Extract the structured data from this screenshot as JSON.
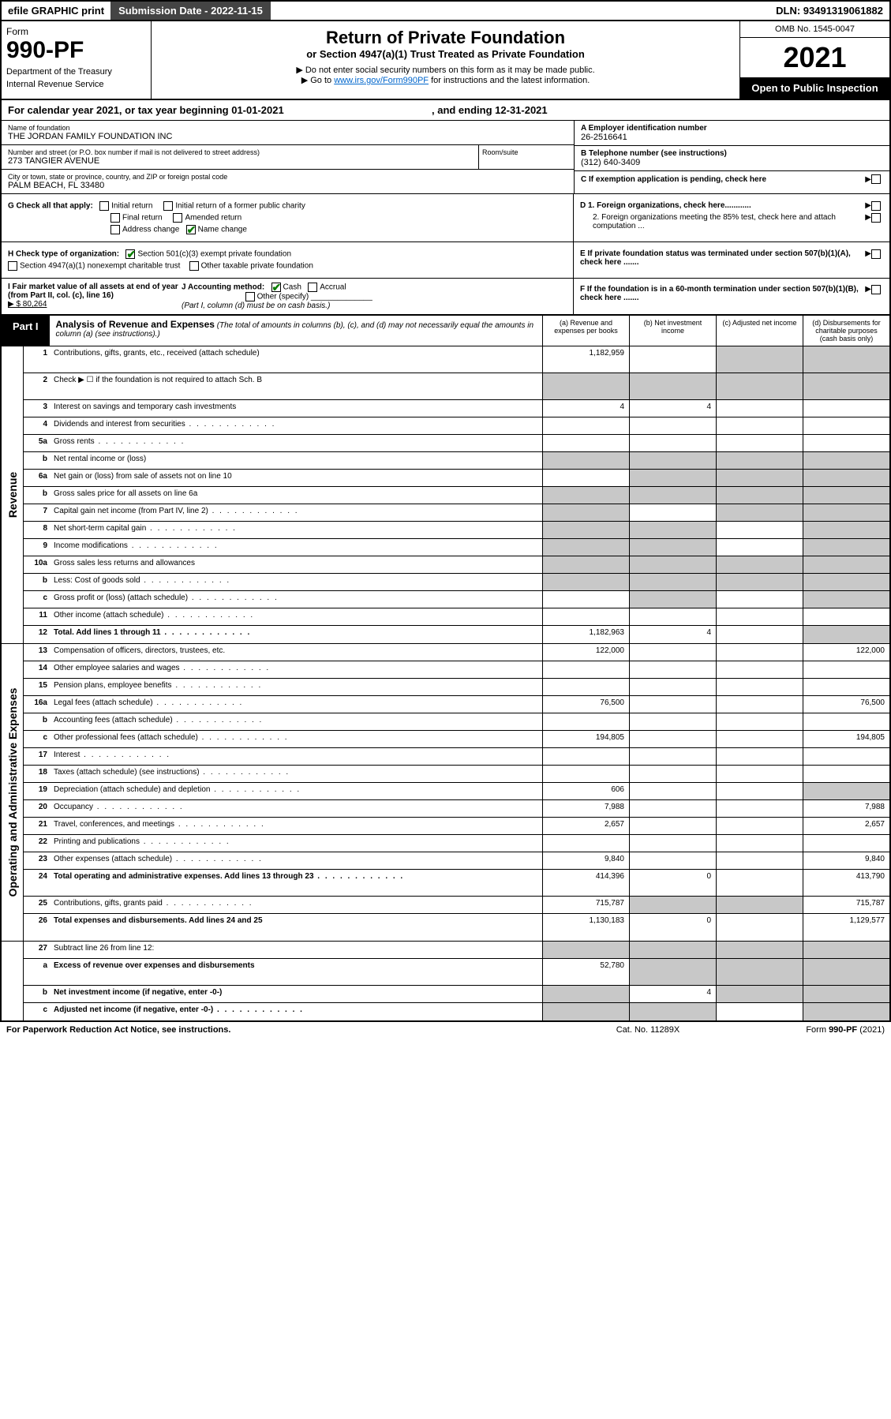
{
  "topbar": {
    "efile": "efile GRAPHIC print",
    "subdate_label": "Submission Date - 2022-11-15",
    "dln": "DLN: 93491319061882"
  },
  "header": {
    "form_word": "Form",
    "form_no": "990-PF",
    "dept": "Department of the Treasury",
    "irs": "Internal Revenue Service",
    "title": "Return of Private Foundation",
    "subtitle": "or Section 4947(a)(1) Trust Treated as Private Foundation",
    "note1": "▶ Do not enter social security numbers on this form as it may be made public.",
    "note2_pre": "▶ Go to ",
    "note2_link": "www.irs.gov/Form990PF",
    "note2_post": " for instructions and the latest information.",
    "omb": "OMB No. 1545-0047",
    "year": "2021",
    "open": "Open to Public Inspection"
  },
  "calyear": {
    "text_a": "For calendar year 2021, or tax year beginning 01-01-2021",
    "text_b": ", and ending 12-31-2021"
  },
  "foundation": {
    "name_label": "Name of foundation",
    "name": "THE JORDAN FAMILY FOUNDATION INC",
    "addr_label": "Number and street (or P.O. box number if mail is not delivered to street address)",
    "addr": "273 TANGIER AVENUE",
    "room_label": "Room/suite",
    "city_label": "City or town, state or province, country, and ZIP or foreign postal code",
    "city": "PALM BEACH, FL  33480",
    "ein_label": "A Employer identification number",
    "ein": "26-2516641",
    "phone_label": "B Telephone number (see instructions)",
    "phone": "(312) 640-3409",
    "c_label": "C If exemption application is pending, check here",
    "d1": "D 1. Foreign organizations, check here............",
    "d2": "2. Foreign organizations meeting the 85% test, check here and attach computation ...",
    "e": "E  If private foundation status was terminated under section 507(b)(1)(A), check here .......",
    "f": "F  If the foundation is in a 60-month termination under section 507(b)(1)(B), check here .......",
    "g_label": "G Check all that apply:",
    "g_opts": [
      "Initial return",
      "Initial return of a former public charity",
      "Final return",
      "Amended return",
      "Address change",
      "Name change"
    ],
    "h_label": "H Check type of organization:",
    "h1": "Section 501(c)(3) exempt private foundation",
    "h2": "Section 4947(a)(1) nonexempt charitable trust",
    "h3": "Other taxable private foundation",
    "i_label": "I Fair market value of all assets at end of year (from Part II, col. (c), line 16)",
    "i_val": "▶ $  80,264",
    "j_label": "J Accounting method:",
    "j_cash": "Cash",
    "j_accrual": "Accrual",
    "j_other": "Other (specify)",
    "j_note": "(Part I, column (d) must be on cash basis.)"
  },
  "part1": {
    "tag": "Part I",
    "title": "Analysis of Revenue and Expenses",
    "title_note": " (The total of amounts in columns (b), (c), and (d) may not necessarily equal the amounts in column (a) (see instructions).)",
    "col_a": "(a)   Revenue and expenses per books",
    "col_b": "(b)   Net investment income",
    "col_c": "(c)   Adjusted net income",
    "col_d": "(d)  Disbursements for charitable purposes (cash basis only)"
  },
  "side_labels": {
    "rev": "Revenue",
    "exp": "Operating and Administrative Expenses"
  },
  "rows": [
    {
      "ln": "1",
      "desc": "Contributions, gifts, grants, etc., received (attach schedule)",
      "a": "1,182,959",
      "b": "",
      "c": "",
      "d": "",
      "gb": false,
      "gc": true,
      "gd": true,
      "tall": true
    },
    {
      "ln": "2",
      "desc": "Check ▶ ☐ if the foundation is not required to attach Sch. B",
      "a": "",
      "b": "",
      "c": "",
      "d": "",
      "ga": true,
      "gb": true,
      "gc": true,
      "gd": true,
      "tall": true,
      "dotsdesc": true
    },
    {
      "ln": "3",
      "desc": "Interest on savings and temporary cash investments",
      "a": "4",
      "b": "4",
      "c": "",
      "d": ""
    },
    {
      "ln": "4",
      "desc": "Dividends and interest from securities",
      "a": "",
      "b": "",
      "c": "",
      "d": "",
      "dots": true
    },
    {
      "ln": "5a",
      "desc": "Gross rents",
      "a": "",
      "b": "",
      "c": "",
      "d": "",
      "dots": true
    },
    {
      "ln": "b",
      "desc": "Net rental income or (loss)",
      "a": "",
      "b": "",
      "c": "",
      "d": "",
      "ga": true,
      "gb": true,
      "gc": true,
      "gd": true
    },
    {
      "ln": "6a",
      "desc": "Net gain or (loss) from sale of assets not on line 10",
      "a": "",
      "b": "",
      "c": "",
      "d": "",
      "gb": true,
      "gc": true,
      "gd": true
    },
    {
      "ln": "b",
      "desc": "Gross sales price for all assets on line 6a",
      "a": "",
      "b": "",
      "c": "",
      "d": "",
      "ga": true,
      "gb": true,
      "gc": true,
      "gd": true
    },
    {
      "ln": "7",
      "desc": "Capital gain net income (from Part IV, line 2)",
      "a": "",
      "b": "",
      "c": "",
      "d": "",
      "ga": true,
      "gc": true,
      "gd": true,
      "dots": true
    },
    {
      "ln": "8",
      "desc": "Net short-term capital gain",
      "a": "",
      "b": "",
      "c": "",
      "d": "",
      "ga": true,
      "gb": true,
      "gd": true,
      "dots": true
    },
    {
      "ln": "9",
      "desc": "Income modifications",
      "a": "",
      "b": "",
      "c": "",
      "d": "",
      "ga": true,
      "gb": true,
      "gd": true,
      "dots": true
    },
    {
      "ln": "10a",
      "desc": "Gross sales less returns and allowances",
      "a": "",
      "b": "",
      "c": "",
      "d": "",
      "ga": true,
      "gb": true,
      "gc": true,
      "gd": true
    },
    {
      "ln": "b",
      "desc": "Less: Cost of goods sold",
      "a": "",
      "b": "",
      "c": "",
      "d": "",
      "ga": true,
      "gb": true,
      "gc": true,
      "gd": true,
      "dots": true
    },
    {
      "ln": "c",
      "desc": "Gross profit or (loss) (attach schedule)",
      "a": "",
      "b": "",
      "c": "",
      "d": "",
      "gb": true,
      "gd": true,
      "dots": true
    },
    {
      "ln": "11",
      "desc": "Other income (attach schedule)",
      "a": "",
      "b": "",
      "c": "",
      "d": "",
      "dots": true
    },
    {
      "ln": "12",
      "desc": "Total. Add lines 1 through 11",
      "a": "1,182,963",
      "b": "4",
      "c": "",
      "d": "",
      "bold": true,
      "gd": true,
      "dots": true
    }
  ],
  "exp_rows": [
    {
      "ln": "13",
      "desc": "Compensation of officers, directors, trustees, etc.",
      "a": "122,000",
      "b": "",
      "c": "",
      "d": "122,000"
    },
    {
      "ln": "14",
      "desc": "Other employee salaries and wages",
      "a": "",
      "b": "",
      "c": "",
      "d": "",
      "dots": true
    },
    {
      "ln": "15",
      "desc": "Pension plans, employee benefits",
      "a": "",
      "b": "",
      "c": "",
      "d": "",
      "dots": true
    },
    {
      "ln": "16a",
      "desc": "Legal fees (attach schedule)",
      "a": "76,500",
      "b": "",
      "c": "",
      "d": "76,500",
      "dots": true
    },
    {
      "ln": "b",
      "desc": "Accounting fees (attach schedule)",
      "a": "",
      "b": "",
      "c": "",
      "d": "",
      "dots": true
    },
    {
      "ln": "c",
      "desc": "Other professional fees (attach schedule)",
      "a": "194,805",
      "b": "",
      "c": "",
      "d": "194,805",
      "dots": true
    },
    {
      "ln": "17",
      "desc": "Interest",
      "a": "",
      "b": "",
      "c": "",
      "d": "",
      "dots": true
    },
    {
      "ln": "18",
      "desc": "Taxes (attach schedule) (see instructions)",
      "a": "",
      "b": "",
      "c": "",
      "d": "",
      "dots": true
    },
    {
      "ln": "19",
      "desc": "Depreciation (attach schedule) and depletion",
      "a": "606",
      "b": "",
      "c": "",
      "d": "",
      "gd": true,
      "dots": true
    },
    {
      "ln": "20",
      "desc": "Occupancy",
      "a": "7,988",
      "b": "",
      "c": "",
      "d": "7,988",
      "dots": true
    },
    {
      "ln": "21",
      "desc": "Travel, conferences, and meetings",
      "a": "2,657",
      "b": "",
      "c": "",
      "d": "2,657",
      "dots": true
    },
    {
      "ln": "22",
      "desc": "Printing and publications",
      "a": "",
      "b": "",
      "c": "",
      "d": "",
      "dots": true
    },
    {
      "ln": "23",
      "desc": "Other expenses (attach schedule)",
      "a": "9,840",
      "b": "",
      "c": "",
      "d": "9,840",
      "dots": true
    },
    {
      "ln": "24",
      "desc": "Total operating and administrative expenses. Add lines 13 through 23",
      "a": "414,396",
      "b": "0",
      "c": "",
      "d": "413,790",
      "bold": true,
      "tall": true,
      "dots": true
    },
    {
      "ln": "25",
      "desc": "Contributions, gifts, grants paid",
      "a": "715,787",
      "b": "",
      "c": "",
      "d": "715,787",
      "gb": true,
      "gc": true,
      "dots": true
    },
    {
      "ln": "26",
      "desc": "Total expenses and disbursements. Add lines 24 and 25",
      "a": "1,130,183",
      "b": "0",
      "c": "",
      "d": "1,129,577",
      "bold": true,
      "tall": true
    }
  ],
  "net_rows": [
    {
      "ln": "27",
      "desc": "Subtract line 26 from line 12:",
      "a": "",
      "b": "",
      "c": "",
      "d": "",
      "ga": true,
      "gb": true,
      "gc": true,
      "gd": true
    },
    {
      "ln": "a",
      "desc": "Excess of revenue over expenses and disbursements",
      "a": "52,780",
      "b": "",
      "c": "",
      "d": "",
      "bold": true,
      "gb": true,
      "gc": true,
      "gd": true,
      "tall": true
    },
    {
      "ln": "b",
      "desc": "Net investment income (if negative, enter -0-)",
      "a": "",
      "b": "4",
      "c": "",
      "d": "",
      "bold": true,
      "ga": true,
      "gc": true,
      "gd": true
    },
    {
      "ln": "c",
      "desc": "Adjusted net income (if negative, enter -0-)",
      "a": "",
      "b": "",
      "c": "",
      "d": "",
      "bold": true,
      "ga": true,
      "gb": true,
      "gd": true,
      "dots": true
    }
  ],
  "footer": {
    "l": "For Paperwork Reduction Act Notice, see instructions.",
    "m": "Cat. No. 11289X",
    "r": "Form 990-PF (2021)"
  }
}
